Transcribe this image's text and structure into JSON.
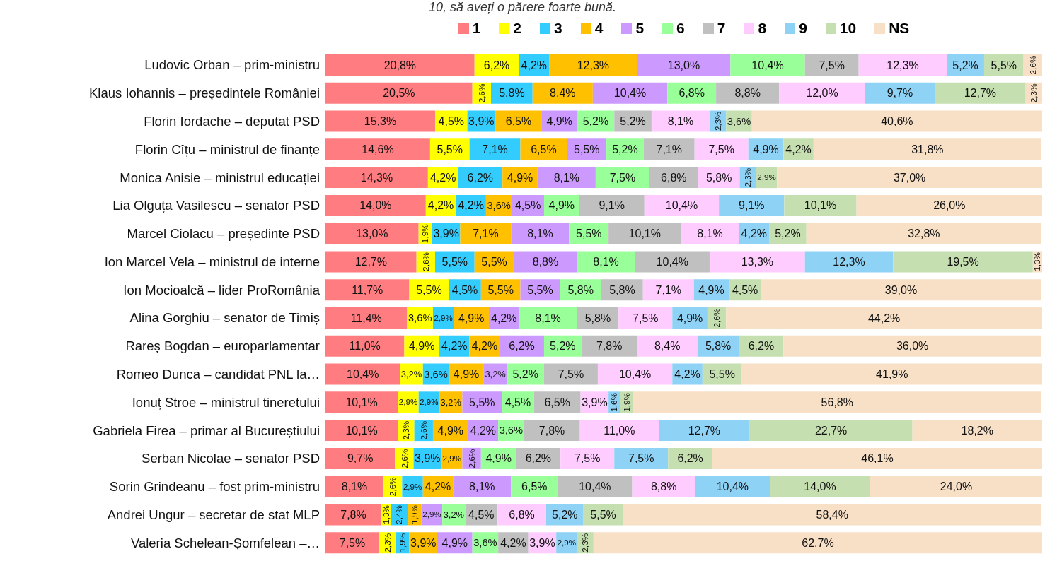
{
  "chart_data": {
    "type": "bar",
    "orientation": "horizontal",
    "stacked": true,
    "title": "10, să aveți o părere foarte bună.",
    "legend": "top",
    "tick_labels": "y",
    "xlim": [
      0,
      100
    ],
    "categories": [
      "Ludovic Orban – prim-ministru",
      "Klaus Iohannis – președintele României",
      "Florin Iordache – deputat PSD",
      "Florin Cîțu – ministrul de finanțe",
      "Monica Anisie – ministrul educației",
      "Lia Olguța Vasilescu – senator PSD",
      "Marcel Ciolacu – președinte PSD",
      "Ion Marcel Vela – ministrul de interne",
      "Ion Mocioalcă – lider ProRomânia",
      "Alina Gorghiu – senator de Timiș",
      "Rareș Bogdan – europarlamentar",
      "Romeo Dunca – candidat PNL la…",
      "Ionuț Stroe – ministrul tineretului",
      "Gabriela Firea – primar al Bucureștiului",
      "Serban Nicolae – senator PSD",
      "Sorin Grindeanu – fost prim-ministru",
      "Andrei Ungur – secretar de stat MLP",
      "Valeria Schelean-Șomfelean –…"
    ],
    "series": [
      {
        "name": "1",
        "color": "#ff7c80",
        "values": [
          20.8,
          20.5,
          15.3,
          14.6,
          14.3,
          14.0,
          13.0,
          12.7,
          11.7,
          11.4,
          11.0,
          10.4,
          10.1,
          10.1,
          9.7,
          8.1,
          7.8,
          7.5
        ],
        "value_labels": [
          "20,8%",
          "20,5%",
          "15,3%",
          "14,6%",
          "14,3%",
          "14,0%",
          "13,0%",
          "12,7%",
          "11,7%",
          "11,4%",
          "11,0%",
          "10,4%",
          "10,1%",
          "10,1%",
          "9,7%",
          "8,1%",
          "7,8%",
          "7,5%"
        ]
      },
      {
        "name": "2",
        "color": "#ffff00",
        "values": [
          6.2,
          2.6,
          4.5,
          5.5,
          4.2,
          4.2,
          1.9,
          2.6,
          5.5,
          3.6,
          4.9,
          3.2,
          2.9,
          2.3,
          2.6,
          2.6,
          1.3,
          2.3
        ],
        "value_labels": [
          "6,2%",
          "2,6%",
          "4,5%",
          "5,5%",
          "4,2%",
          "4,2%",
          "1,9%",
          "2,6%",
          "5,5%",
          "3,6%",
          "4,9%",
          "3,2%",
          "2,9%",
          "2,3%",
          "2,6%",
          "2,6%",
          "1,3%",
          "2,3%"
        ]
      },
      {
        "name": "3",
        "color": "#33ccff",
        "values": [
          4.2,
          5.8,
          3.9,
          7.1,
          6.2,
          4.2,
          3.9,
          5.5,
          4.5,
          2.9,
          4.2,
          3.6,
          2.9,
          2.6,
          3.9,
          2.9,
          2.4,
          1.9
        ],
        "value_labels": [
          "4,2%",
          "5,8%",
          "3,9%",
          "7,1%",
          "6,2%",
          "4,2%",
          "3,9%",
          "5,5%",
          "4,5%",
          "2,9%",
          "4,2%",
          "3,6%",
          "2,9%",
          "2,6%",
          "3,9%",
          "2,9%",
          "2,4%",
          "1,9%"
        ]
      },
      {
        "name": "4",
        "color": "#ffc000",
        "values": [
          12.3,
          8.4,
          6.5,
          6.5,
          4.9,
          3.6,
          7.1,
          5.5,
          5.5,
          4.9,
          4.2,
          4.9,
          3.2,
          4.9,
          2.9,
          4.2,
          1.9,
          3.9
        ],
        "value_labels": [
          "12,3%",
          "8,4%",
          "6,5%",
          "6,5%",
          "4,9%",
          "3,6%",
          "7,1%",
          "5,5%",
          "5,5%",
          "4,9%",
          "4,2%",
          "4,9%",
          "3,2%",
          "4,9%",
          "2,9%",
          "4,2%",
          "1,9%",
          "3,9%"
        ]
      },
      {
        "name": "5",
        "color": "#cc99ff",
        "values": [
          13.0,
          10.4,
          4.9,
          5.5,
          8.1,
          4.5,
          8.1,
          8.8,
          5.5,
          4.2,
          6.2,
          3.2,
          5.5,
          4.2,
          2.6,
          8.1,
          2.9,
          4.9
        ],
        "value_labels": [
          "13,0%",
          "10,4%",
          "4,9%",
          "5,5%",
          "8,1%",
          "4,5%",
          "8,1%",
          "8,8%",
          "5,5%",
          "4,2%",
          "6,2%",
          "3,2%",
          "5,5%",
          "4,2%",
          "2,6%",
          "8,1%",
          "2,9%",
          "4,9%"
        ]
      },
      {
        "name": "6",
        "color": "#99ff99",
        "values": [
          10.4,
          6.8,
          5.2,
          5.2,
          7.5,
          4.9,
          5.5,
          8.1,
          5.8,
          8.1,
          5.2,
          5.2,
          4.5,
          3.6,
          4.9,
          6.5,
          3.2,
          3.6
        ],
        "value_labels": [
          "10,4%",
          "6,8%",
          "5,2%",
          "5,2%",
          "7,5%",
          "4,9%",
          "5,5%",
          "8,1%",
          "5,8%",
          "8,1%",
          "5,2%",
          "5,2%",
          "4,5%",
          "3,6%",
          "4,9%",
          "6,5%",
          "3,2%",
          "3,6%"
        ]
      },
      {
        "name": "7",
        "color": "#c0c0c0",
        "values": [
          7.5,
          8.8,
          5.2,
          7.1,
          6.8,
          9.1,
          10.1,
          10.4,
          5.8,
          5.8,
          7.8,
          7.5,
          6.5,
          7.8,
          6.2,
          10.4,
          4.5,
          4.2
        ],
        "value_labels": [
          "7,5%",
          "8,8%",
          "5,2%",
          "7,1%",
          "6,8%",
          "9,1%",
          "10,1%",
          "10,4%",
          "5,8%",
          "5,8%",
          "7,8%",
          "7,5%",
          "6,5%",
          "7,8%",
          "6,2%",
          "10,4%",
          "4,5%",
          "4,2%"
        ]
      },
      {
        "name": "8",
        "color": "#ffccff",
        "values": [
          12.3,
          12.0,
          8.1,
          7.5,
          5.8,
          10.4,
          8.1,
          13.3,
          7.1,
          7.5,
          8.4,
          10.4,
          3.9,
          11.0,
          7.5,
          8.8,
          6.8,
          3.9
        ],
        "value_labels": [
          "12,3%",
          "12,0%",
          "8,1%",
          "7,5%",
          "5,8%",
          "10,4%",
          "8,1%",
          "13,3%",
          "7,1%",
          "7,5%",
          "8,4%",
          "10,4%",
          "3,9%",
          "11,0%",
          "7,5%",
          "8,8%",
          "6,8%",
          "3,9%"
        ]
      },
      {
        "name": "9",
        "color": "#8ed2f6",
        "values": [
          5.2,
          9.7,
          2.3,
          4.9,
          2.3,
          9.1,
          4.2,
          12.3,
          4.9,
          4.9,
          5.8,
          4.2,
          1.6,
          12.7,
          7.5,
          10.4,
          5.2,
          2.9
        ],
        "value_labels": [
          "5,2%",
          "9,7%",
          "2,3%",
          "4,9%",
          "2,3%",
          "9,1%",
          "4,2%",
          "12,3%",
          "4,9%",
          "4,9%",
          "5,8%",
          "4,2%",
          "1,6%",
          "12,7%",
          "7,5%",
          "10,4%",
          "5,2%",
          "2,9%"
        ]
      },
      {
        "name": "10",
        "color": "#c6dfb0",
        "values": [
          5.5,
          12.7,
          3.6,
          4.2,
          2.9,
          10.1,
          5.2,
          19.5,
          4.5,
          2.6,
          6.2,
          5.5,
          1.9,
          22.7,
          6.2,
          14.0,
          5.5,
          2.3
        ],
        "value_labels": [
          "5,5%",
          "12,7%",
          "3,6%",
          "4,2%",
          "2,9%",
          "10,1%",
          "5,2%",
          "19,5%",
          "4,5%",
          "2,6%",
          "6,2%",
          "5,5%",
          "1,9%",
          "22,7%",
          "6,2%",
          "14,0%",
          "5,5%",
          "2,3%"
        ]
      },
      {
        "name": "NS",
        "color": "#f8e0c6",
        "values": [
          2.6,
          2.3,
          40.6,
          31.8,
          37.0,
          26.0,
          32.8,
          1.3,
          39.0,
          44.2,
          36.0,
          41.9,
          56.8,
          18.2,
          46.1,
          24.0,
          58.4,
          62.7
        ],
        "value_labels": [
          "2,6%",
          "2,3%",
          "40,6%",
          "31,8%",
          "37,0%",
          "26,0%",
          "32,8%",
          "1,3%",
          "39,0%",
          "44,2%",
          "36,0%",
          "41,9%",
          "56,8%",
          "18,2%",
          "46,1%",
          "24,0%",
          "58,4%",
          "62,7%"
        ]
      }
    ]
  }
}
